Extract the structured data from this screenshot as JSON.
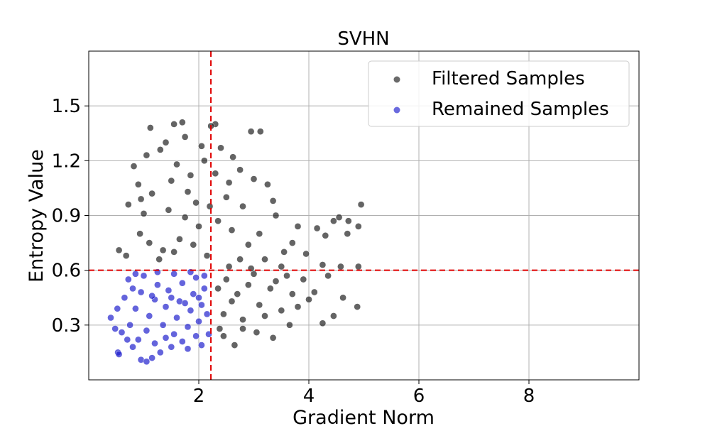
{
  "chart_data": {
    "type": "scatter",
    "title": "SVHN",
    "xlabel": "Gradient Norm",
    "ylabel": "Entropy Value",
    "xlim": [
      0.0,
      10.0
    ],
    "ylim": [
      0.0,
      1.8
    ],
    "xticks": [
      2,
      4,
      6,
      8
    ],
    "yticks": [
      0.3,
      0.6,
      0.9,
      1.2,
      1.5
    ],
    "xtick_labels": [
      "2",
      "4",
      "6",
      "8"
    ],
    "ytick_labels": [
      "0.3",
      "0.6",
      "0.9",
      "1.2",
      "1.5"
    ],
    "grid": true,
    "legend_position": "top-right",
    "thresholds": {
      "x": 2.22,
      "y": 0.6,
      "color": "#e00000",
      "style": "dashed"
    },
    "series": [
      {
        "name": "Filtered Samples",
        "color": "#1a1a1a",
        "points": [
          [
            1.12,
            1.38
          ],
          [
            1.55,
            1.4
          ],
          [
            1.7,
            1.41
          ],
          [
            2.3,
            1.4
          ],
          [
            2.22,
            1.39
          ],
          [
            2.95,
            1.36
          ],
          [
            3.12,
            1.36
          ],
          [
            1.05,
            1.23
          ],
          [
            0.82,
            1.17
          ],
          [
            1.4,
            1.3
          ],
          [
            1.75,
            1.33
          ],
          [
            2.05,
            1.28
          ],
          [
            2.4,
            1.27
          ],
          [
            2.62,
            1.22
          ],
          [
            3.0,
            1.1
          ],
          [
            3.25,
            1.07
          ],
          [
            3.4,
            0.9
          ],
          [
            3.8,
            0.84
          ],
          [
            4.15,
            0.83
          ],
          [
            4.45,
            0.87
          ],
          [
            4.55,
            0.89
          ],
          [
            4.72,
            0.87
          ],
          [
            4.95,
            0.96
          ],
          [
            4.9,
            0.84
          ],
          [
            4.3,
            0.79
          ],
          [
            4.7,
            0.8
          ],
          [
            4.9,
            0.62
          ],
          [
            4.88,
            0.4
          ],
          [
            4.62,
            0.45
          ],
          [
            4.45,
            0.35
          ],
          [
            4.25,
            0.31
          ],
          [
            3.65,
            0.3
          ],
          [
            3.35,
            0.23
          ],
          [
            2.65,
            0.19
          ],
          [
            2.45,
            0.24
          ],
          [
            2.38,
            0.28
          ],
          [
            0.95,
            0.99
          ],
          [
            0.72,
            0.96
          ],
          [
            1.0,
            0.91
          ],
          [
            0.55,
            0.71
          ],
          [
            0.68,
            0.68
          ],
          [
            0.93,
            0.8
          ],
          [
            1.28,
            0.66
          ],
          [
            1.55,
            0.7
          ],
          [
            2.5,
            1.0
          ],
          [
            2.8,
            0.95
          ],
          [
            3.1,
            0.8
          ],
          [
            3.55,
            0.7
          ],
          [
            3.95,
            0.69
          ],
          [
            4.25,
            0.63
          ],
          [
            4.58,
            0.62
          ],
          [
            3.05,
            0.26
          ],
          [
            2.8,
            0.28
          ],
          [
            3.9,
            0.55
          ],
          [
            4.1,
            0.48
          ],
          [
            4.35,
            0.57
          ],
          [
            1.3,
            1.26
          ],
          [
            1.6,
            1.18
          ],
          [
            1.85,
            1.12
          ],
          [
            1.95,
            0.97
          ],
          [
            2.1,
            1.2
          ],
          [
            2.3,
            1.13
          ],
          [
            2.55,
            1.08
          ],
          [
            2.75,
            1.15
          ],
          [
            0.9,
            1.07
          ],
          [
            1.15,
            1.02
          ],
          [
            1.45,
            0.93
          ],
          [
            1.75,
            0.89
          ],
          [
            2.0,
            0.84
          ],
          [
            2.35,
            0.87
          ],
          [
            2.6,
            0.82
          ],
          [
            2.9,
            0.74
          ],
          [
            3.2,
            0.66
          ],
          [
            3.5,
            0.62
          ],
          [
            2.5,
            0.55
          ],
          [
            2.7,
            0.47
          ],
          [
            2.9,
            0.52
          ],
          [
            3.1,
            0.41
          ],
          [
            3.3,
            0.5
          ],
          [
            3.5,
            0.38
          ],
          [
            3.7,
            0.47
          ],
          [
            2.45,
            0.36
          ],
          [
            2.6,
            0.43
          ],
          [
            2.8,
            0.33
          ],
          [
            3.0,
            0.58
          ],
          [
            3.2,
            0.35
          ],
          [
            3.4,
            0.54
          ],
          [
            3.6,
            0.57
          ],
          [
            3.8,
            0.4
          ],
          [
            4.0,
            0.44
          ],
          [
            2.35,
            0.5
          ],
          [
            2.55,
            0.62
          ],
          [
            2.75,
            0.66
          ],
          [
            2.95,
            0.61
          ],
          [
            1.35,
            0.71
          ],
          [
            1.65,
            0.77
          ],
          [
            1.9,
            0.74
          ],
          [
            2.15,
            0.68
          ],
          [
            1.1,
            0.75
          ],
          [
            1.5,
            1.09
          ],
          [
            1.8,
            1.03
          ],
          [
            2.2,
            0.95
          ],
          [
            3.35,
            0.98
          ],
          [
            3.7,
            0.75
          ]
        ]
      },
      {
        "name": "Remained Samples",
        "color": "#1a1acc",
        "points": [
          [
            0.4,
            0.34
          ],
          [
            0.52,
            0.39
          ],
          [
            0.48,
            0.28
          ],
          [
            0.53,
            0.15
          ],
          [
            0.55,
            0.14
          ],
          [
            0.7,
            0.22
          ],
          [
            0.8,
            0.18
          ],
          [
            0.95,
            0.11
          ],
          [
            1.05,
            0.1
          ],
          [
            1.15,
            0.12
          ],
          [
            1.3,
            0.15
          ],
          [
            1.5,
            0.18
          ],
          [
            1.8,
            0.17
          ],
          [
            2.05,
            0.19
          ],
          [
            2.18,
            0.25
          ],
          [
            0.65,
            0.45
          ],
          [
            0.72,
            0.55
          ],
          [
            0.85,
            0.58
          ],
          [
            1.0,
            0.57
          ],
          [
            1.25,
            0.59
          ],
          [
            1.55,
            0.58
          ],
          [
            1.85,
            0.59
          ],
          [
            2.1,
            0.57
          ],
          [
            0.75,
            0.3
          ],
          [
            0.85,
            0.39
          ],
          [
            0.95,
            0.48
          ],
          [
            1.05,
            0.27
          ],
          [
            1.1,
            0.35
          ],
          [
            1.2,
            0.44
          ],
          [
            1.25,
            0.52
          ],
          [
            1.35,
            0.3
          ],
          [
            1.4,
            0.4
          ],
          [
            1.45,
            0.49
          ],
          [
            1.55,
            0.25
          ],
          [
            1.6,
            0.34
          ],
          [
            1.65,
            0.43
          ],
          [
            1.7,
            0.53
          ],
          [
            1.8,
            0.29
          ],
          [
            1.85,
            0.38
          ],
          [
            1.9,
            0.47
          ],
          [
            1.95,
            0.56
          ],
          [
            2.0,
            0.32
          ],
          [
            2.05,
            0.41
          ],
          [
            2.1,
            0.5
          ],
          [
            2.15,
            0.36
          ],
          [
            0.6,
            0.26
          ],
          [
            0.9,
            0.22
          ],
          [
            1.2,
            0.2
          ],
          [
            1.4,
            0.23
          ],
          [
            1.7,
            0.21
          ],
          [
            1.95,
            0.24
          ],
          [
            0.8,
            0.5
          ],
          [
            1.15,
            0.46
          ],
          [
            1.5,
            0.45
          ],
          [
            1.75,
            0.42
          ],
          [
            2.0,
            0.45
          ]
        ]
      }
    ]
  }
}
